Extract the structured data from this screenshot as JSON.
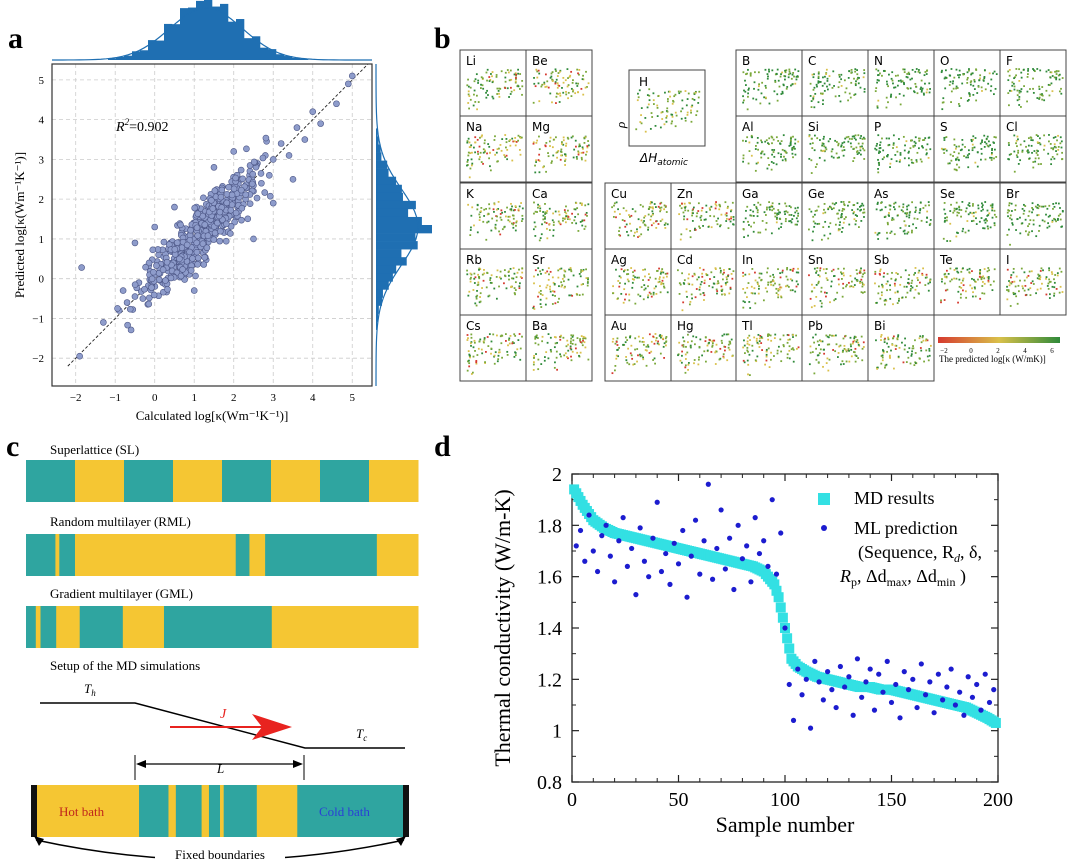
{
  "panels": {
    "a": {
      "letter": "a",
      "r2_label": "R",
      "r2_sup": "2",
      "r2_value": "=0.902",
      "chart_data": {
        "type": "scatter",
        "xlabel": "Calculated log[κ(Wm⁻¹K⁻¹)]",
        "ylabel": "Predicted log[κ(Wm⁻¹K⁻¹)]",
        "xlim": [
          -2.6,
          5.5
        ],
        "ylim": [
          -2.7,
          5.4
        ],
        "xticks": [
          -2,
          -1,
          0,
          1,
          2,
          3,
          4,
          5
        ],
        "yticks": [
          -2,
          -1,
          0,
          1,
          2,
          3,
          4,
          5
        ],
        "annotation": "R²=0.902",
        "grid": true,
        "diagonal_reference": true,
        "marginal_histograms": "top and right",
        "points": [
          [
            -1.9,
            -1.95
          ],
          [
            -1.85,
            0.28
          ],
          [
            -1.3,
            -1.1
          ],
          [
            -0.9,
            -0.8
          ],
          [
            -0.8,
            -0.3
          ],
          [
            -0.7,
            -0.6
          ],
          [
            -0.5,
            -0.45
          ],
          [
            -0.4,
            -0.1
          ],
          [
            -0.3,
            -0.5
          ],
          [
            -0.2,
            0.3
          ],
          [
            -0.1,
            -0.2
          ],
          [
            0.0,
            0.1
          ],
          [
            0.1,
            0.6
          ],
          [
            0.2,
            -0.1
          ],
          [
            0.3,
            0.4
          ],
          [
            0.4,
            0.9
          ],
          [
            0.5,
            0.3
          ],
          [
            0.6,
            0.7
          ],
          [
            0.7,
            1.2
          ],
          [
            0.8,
            0.5
          ],
          [
            0.9,
            1.0
          ],
          [
            1.0,
            0.8
          ],
          [
            1.1,
            1.4
          ],
          [
            1.2,
            1.0
          ],
          [
            1.3,
            1.6
          ],
          [
            1.4,
            1.1
          ],
          [
            1.5,
            1.5
          ],
          [
            1.6,
            2.0
          ],
          [
            1.7,
            1.4
          ],
          [
            1.8,
            1.9
          ],
          [
            1.9,
            1.6
          ],
          [
            2.0,
            2.3
          ],
          [
            2.1,
            1.8
          ],
          [
            2.2,
            2.5
          ],
          [
            2.3,
            2.0
          ],
          [
            2.4,
            2.6
          ],
          [
            2.5,
            2.2
          ],
          [
            2.6,
            2.9
          ],
          [
            2.7,
            2.4
          ],
          [
            2.8,
            3.1
          ],
          [
            2.9,
            2.6
          ],
          [
            3.0,
            3.0
          ],
          [
            3.2,
            3.4
          ],
          [
            3.4,
            3.1
          ],
          [
            3.6,
            3.8
          ],
          [
            3.8,
            3.5
          ],
          [
            4.0,
            4.2
          ],
          [
            4.2,
            3.9
          ],
          [
            4.6,
            4.4
          ],
          [
            4.9,
            4.9
          ],
          [
            5.0,
            5.1
          ],
          [
            1.5,
            2.8
          ],
          [
            0.5,
            1.8
          ],
          [
            2.5,
            1.0
          ],
          [
            3.0,
            1.9
          ],
          [
            1.0,
            -0.3
          ],
          [
            0.0,
            1.3
          ],
          [
            -0.5,
            0.9
          ],
          [
            2.0,
            3.2
          ],
          [
            3.5,
            2.5
          ]
        ]
      }
    },
    "b": {
      "letter": "b",
      "y_symbol": "ρ",
      "x_symbol": "ΔH",
      "x_symbol_sub": "atomic",
      "colorbar_label": "The predicted log[κ (W/mK)]",
      "colorbar_ticks": [
        "−2",
        "0",
        "2",
        "4",
        "6"
      ],
      "colors": {
        "low": "#d63a2f",
        "mid": "#d9c04a",
        "high": "#2f8a3a"
      },
      "elements": [
        {
          "sym": "Li",
          "col": 0,
          "row": 0
        },
        {
          "sym": "Be",
          "col": 1,
          "row": 0
        },
        {
          "sym": "B",
          "col": 4,
          "row": 0
        },
        {
          "sym": "C",
          "col": 5,
          "row": 0
        },
        {
          "sym": "N",
          "col": 6,
          "row": 0
        },
        {
          "sym": "O",
          "col": 7,
          "row": 0
        },
        {
          "sym": "F",
          "col": 8,
          "row": 0
        },
        {
          "sym": "Na",
          "col": 0,
          "row": 1
        },
        {
          "sym": "Mg",
          "col": 1,
          "row": 1
        },
        {
          "sym": "Al",
          "col": 4,
          "row": 1
        },
        {
          "sym": "Si",
          "col": 5,
          "row": 1
        },
        {
          "sym": "P",
          "col": 6,
          "row": 1
        },
        {
          "sym": "S",
          "col": 7,
          "row": 1
        },
        {
          "sym": "Cl",
          "col": 8,
          "row": 1
        },
        {
          "sym": "K",
          "col": 0,
          "row": 2
        },
        {
          "sym": "Ca",
          "col": 1,
          "row": 2
        },
        {
          "sym": "Cu",
          "col": 2,
          "row": 2
        },
        {
          "sym": "Zn",
          "col": 3,
          "row": 2
        },
        {
          "sym": "Ga",
          "col": 4,
          "row": 2
        },
        {
          "sym": "Ge",
          "col": 5,
          "row": 2
        },
        {
          "sym": "As",
          "col": 6,
          "row": 2
        },
        {
          "sym": "Se",
          "col": 7,
          "row": 2
        },
        {
          "sym": "Br",
          "col": 8,
          "row": 2
        },
        {
          "sym": "Rb",
          "col": 0,
          "row": 3
        },
        {
          "sym": "Sr",
          "col": 1,
          "row": 3
        },
        {
          "sym": "Ag",
          "col": 2,
          "row": 3
        },
        {
          "sym": "Cd",
          "col": 3,
          "row": 3
        },
        {
          "sym": "In",
          "col": 4,
          "row": 3
        },
        {
          "sym": "Sn",
          "col": 5,
          "row": 3
        },
        {
          "sym": "Sb",
          "col": 6,
          "row": 3
        },
        {
          "sym": "Te",
          "col": 7,
          "row": 3
        },
        {
          "sym": "I",
          "col": 8,
          "row": 3
        },
        {
          "sym": "Cs",
          "col": 0,
          "row": 4
        },
        {
          "sym": "Ba",
          "col": 1,
          "row": 4
        },
        {
          "sym": "Au",
          "col": 2,
          "row": 4
        },
        {
          "sym": "Hg",
          "col": 3,
          "row": 4
        },
        {
          "sym": "Tl",
          "col": 4,
          "row": 4
        },
        {
          "sym": "Pb",
          "col": 5,
          "row": 4
        },
        {
          "sym": "Bi",
          "col": 6,
          "row": 4
        }
      ],
      "h_cell": {
        "sym": "H"
      }
    },
    "c": {
      "letter": "c",
      "sl_label": "Superlattice (SL)",
      "rml_label": "Random multilayer (RML)",
      "gml_label": "Gradient multilayer (GML)",
      "setup_label": "Setup of the MD simulations",
      "th_label": "T",
      "th_sub": "h",
      "tc_label": "T",
      "tc_sub": "c",
      "j_label": "J",
      "l_label": "L",
      "hot_label": "Hot bath",
      "cold_label": "Cold bath",
      "fixed_label": "Fixed boundaries",
      "colors": {
        "teal": "#2fa5a0",
        "yellow": "#f5c633",
        "arrow": "#e8231f",
        "cold_text": "#2a3fd6",
        "hot_text": "#c0261b"
      },
      "sl_layers": [
        {
          "m": "teal",
          "w": 0.125
        },
        {
          "m": "yellow",
          "w": 0.125
        },
        {
          "m": "teal",
          "w": 0.125
        },
        {
          "m": "yellow",
          "w": 0.125
        },
        {
          "m": "teal",
          "w": 0.125
        },
        {
          "m": "yellow",
          "w": 0.125
        },
        {
          "m": "teal",
          "w": 0.125
        },
        {
          "m": "yellow",
          "w": 0.125
        }
      ],
      "rml_layers": [
        {
          "m": "teal",
          "w": 0.075
        },
        {
          "m": "yellow",
          "w": 0.01
        },
        {
          "m": "teal",
          "w": 0.04
        },
        {
          "m": "yellow",
          "w": 0.41
        },
        {
          "m": "teal",
          "w": 0.035
        },
        {
          "m": "yellow",
          "w": 0.04
        },
        {
          "m": "teal",
          "w": 0.285
        },
        {
          "m": "yellow",
          "w": 0.105
        }
      ],
      "gml_layers": [
        {
          "m": "teal",
          "w": 0.025
        },
        {
          "m": "yellow",
          "w": 0.012
        },
        {
          "m": "teal",
          "w": 0.04
        },
        {
          "m": "yellow",
          "w": 0.06
        },
        {
          "m": "teal",
          "w": 0.11
        },
        {
          "m": "yellow",
          "w": 0.105
        },
        {
          "m": "teal",
          "w": 0.275
        },
        {
          "m": "yellow",
          "w": 0.373
        }
      ],
      "md_layers": [
        {
          "m": "yellow",
          "w": 0.28
        },
        {
          "m": "teal",
          "w": 0.08
        },
        {
          "m": "yellow",
          "w": 0.02
        },
        {
          "m": "teal",
          "w": 0.07
        },
        {
          "m": "yellow",
          "w": 0.02
        },
        {
          "m": "teal",
          "w": 0.03
        },
        {
          "m": "yellow",
          "w": 0.01
        },
        {
          "m": "teal",
          "w": 0.09
        },
        {
          "m": "yellow",
          "w": 0.11
        },
        {
          "m": "teal",
          "w": 0.29
        }
      ]
    },
    "d": {
      "letter": "d",
      "legend_md": "MD results",
      "legend_ml": "ML prediction",
      "legend_ml_line2": "(Sequence, R",
      "legend_ml_line2_sub": "d",
      "legend_ml_line2_tail": ", δ,",
      "legend_ml_line3": "R",
      "legend_ml_line3_sub": "p",
      "legend_ml_line3_mid": ", Δd",
      "legend_ml_line3_sub2": "max",
      "legend_ml_line3_mid2": ", Δd",
      "legend_ml_line3_sub3": "min",
      "legend_ml_line3_tail": " )",
      "chart_data": {
        "type": "scatter",
        "xlabel": "Sample number",
        "ylabel": "Thermal conductivity (W/m-K)",
        "xlim": [
          0,
          200
        ],
        "ylim": [
          0.8,
          2.0
        ],
        "xticks": [
          0,
          50,
          100,
          150,
          200
        ],
        "yticks": [
          0.8,
          1,
          1.2,
          1.4,
          1.6,
          1.8,
          2
        ],
        "series": [
          {
            "name": "MD results",
            "color": "#33e0e3",
            "marker": "square",
            "x": [
              1,
              5,
              10,
              15,
              20,
              25,
              30,
              35,
              40,
              45,
              50,
              55,
              60,
              65,
              70,
              75,
              80,
              85,
              90,
              95,
              97,
              99,
              101,
              103,
              106,
              110,
              115,
              120,
              125,
              130,
              135,
              140,
              145,
              150,
              155,
              160,
              165,
              170,
              175,
              180,
              185,
              190,
              195,
              199
            ],
            "y": [
              1.94,
              1.88,
              1.82,
              1.79,
              1.77,
              1.76,
              1.75,
              1.74,
              1.73,
              1.72,
              1.71,
              1.7,
              1.69,
              1.68,
              1.67,
              1.66,
              1.65,
              1.64,
              1.62,
              1.57,
              1.52,
              1.44,
              1.36,
              1.28,
              1.25,
              1.23,
              1.21,
              1.2,
              1.19,
              1.18,
              1.17,
              1.17,
              1.16,
              1.16,
              1.15,
              1.14,
              1.13,
              1.12,
              1.11,
              1.1,
              1.09,
              1.07,
              1.05,
              1.03
            ]
          },
          {
            "name": "ML prediction",
            "color": "#1c1ccf",
            "marker": "dot",
            "x": [
              2,
              4,
              6,
              8,
              10,
              12,
              14,
              16,
              18,
              20,
              22,
              24,
              26,
              28,
              30,
              32,
              34,
              36,
              38,
              40,
              42,
              44,
              46,
              48,
              50,
              52,
              54,
              56,
              58,
              60,
              62,
              64,
              66,
              68,
              70,
              72,
              74,
              76,
              78,
              80,
              82,
              84,
              86,
              88,
              90,
              92,
              94,
              96,
              98,
              100,
              102,
              104,
              106,
              108,
              110,
              112,
              114,
              116,
              118,
              120,
              122,
              124,
              126,
              128,
              130,
              132,
              134,
              136,
              138,
              140,
              142,
              144,
              146,
              148,
              150,
              152,
              154,
              156,
              158,
              160,
              162,
              164,
              166,
              168,
              170,
              172,
              174,
              176,
              178,
              180,
              182,
              184,
              186,
              188,
              190,
              192,
              194,
              196,
              198
            ],
            "y": [
              1.72,
              1.78,
              1.66,
              1.84,
              1.7,
              1.62,
              1.76,
              1.8,
              1.68,
              1.58,
              1.74,
              1.83,
              1.64,
              1.71,
              1.53,
              1.79,
              1.66,
              1.6,
              1.75,
              1.89,
              1.62,
              1.69,
              1.57,
              1.73,
              1.65,
              1.78,
              1.52,
              1.68,
              1.82,
              1.61,
              1.74,
              1.96,
              1.59,
              1.71,
              1.86,
              1.63,
              1.75,
              1.55,
              1.8,
              1.67,
              1.72,
              1.58,
              1.83,
              1.69,
              1.74,
              1.64,
              1.9,
              1.61,
              1.77,
              1.4,
              1.18,
              1.04,
              1.24,
              1.14,
              1.2,
              1.01,
              1.27,
              1.19,
              1.12,
              1.23,
              1.16,
              1.09,
              1.25,
              1.17,
              1.21,
              1.06,
              1.28,
              1.13,
              1.19,
              1.24,
              1.08,
              1.22,
              1.15,
              1.27,
              1.11,
              1.18,
              1.05,
              1.23,
              1.16,
              1.2,
              1.09,
              1.26,
              1.14,
              1.19,
              1.07,
              1.22,
              1.12,
              1.17,
              1.24,
              1.1,
              1.15,
              1.06,
              1.21,
              1.13,
              1.18,
              1.08,
              1.22,
              1.11,
              1.16
            ]
          }
        ],
        "legend": "top-right",
        "grid": false
      }
    }
  }
}
